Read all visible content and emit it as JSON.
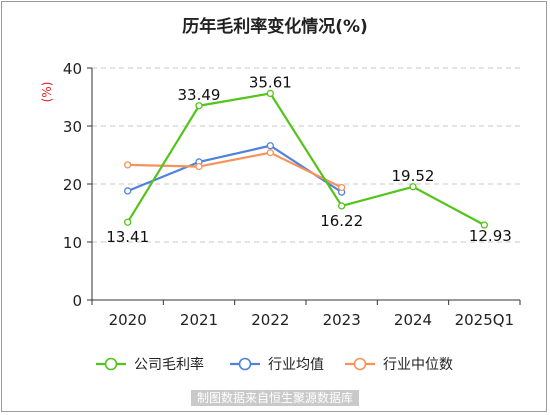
{
  "chart_data": {
    "type": "line",
    "title": "历年毛利率变化情况(%)",
    "ylabel": "(%)",
    "xlabel": "",
    "categories": [
      "2020",
      "2021",
      "2022",
      "2023",
      "2024",
      "2025Q1"
    ],
    "ylim": [
      0,
      40
    ],
    "yticks": [
      0,
      10,
      20,
      30,
      40
    ],
    "grid": true,
    "legend_position": "bottom",
    "series": [
      {
        "name": "公司毛利率",
        "color": "#52c41a",
        "values": [
          13.41,
          33.49,
          35.61,
          16.22,
          19.52,
          12.93
        ],
        "labels": [
          "13.41",
          "33.49",
          "35.61",
          "16.22",
          "19.52",
          "12.93"
        ]
      },
      {
        "name": "行业均值",
        "color": "#4f81e0",
        "values": [
          18.8,
          23.8,
          26.6,
          18.6,
          null,
          null
        ]
      },
      {
        "name": "行业中位数",
        "color": "#f5935a",
        "values": [
          23.3,
          23.0,
          25.4,
          19.4,
          null,
          null
        ]
      }
    ]
  },
  "source_text": "制图数据来自恒生聚源数据库"
}
